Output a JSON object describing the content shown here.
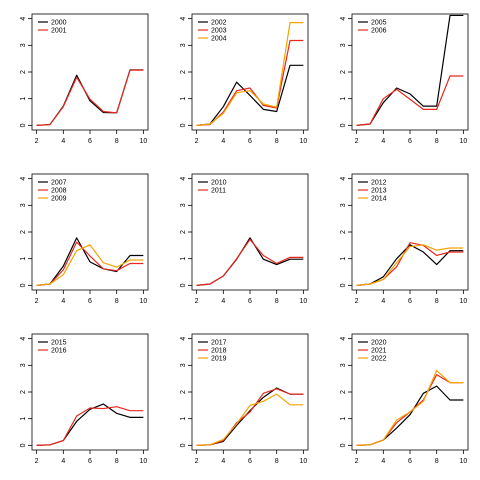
{
  "colors": {
    "black": "#000000",
    "red": "#e8281e",
    "orange": "#f5a300"
  },
  "chart_data": [
    {
      "type": "line",
      "x": [
        2,
        3,
        4,
        5,
        6,
        7,
        8,
        9,
        10
      ],
      "xlim": [
        2,
        10
      ],
      "ylim": [
        0,
        4
      ],
      "xticks": [
        2,
        4,
        6,
        8,
        10
      ],
      "yticks": [
        0,
        1,
        2,
        3,
        4
      ],
      "grid": false,
      "legend": "top-left",
      "series": [
        {
          "name": "2000",
          "color": "black",
          "values": [
            0,
            0.03,
            0.72,
            1.88,
            0.92,
            0.48,
            0.47,
            2.08,
            2.08
          ]
        },
        {
          "name": "2001",
          "color": "red",
          "values": [
            0,
            0.03,
            0.7,
            1.8,
            0.98,
            0.52,
            0.47,
            2.07,
            2.07
          ]
        }
      ]
    },
    {
      "type": "line",
      "x": [
        2,
        3,
        4,
        5,
        6,
        7,
        8,
        9,
        10
      ],
      "xlim": [
        2,
        10
      ],
      "ylim": [
        0,
        4
      ],
      "xticks": [
        2,
        4,
        6,
        8,
        10
      ],
      "yticks": [
        0,
        1,
        2,
        3,
        4
      ],
      "grid": false,
      "legend": "top-left",
      "series": [
        {
          "name": "2002",
          "color": "black",
          "values": [
            0,
            0.05,
            0.7,
            1.62,
            1.12,
            0.6,
            0.52,
            2.25,
            2.25
          ]
        },
        {
          "name": "2003",
          "color": "red",
          "values": [
            0,
            0.03,
            0.5,
            1.3,
            1.4,
            0.75,
            0.65,
            3.18,
            3.18
          ]
        },
        {
          "name": "2004",
          "color": "orange",
          "values": [
            0,
            0.05,
            0.45,
            1.22,
            1.3,
            0.8,
            0.68,
            3.85,
            3.85
          ]
        }
      ]
    },
    {
      "type": "line",
      "x": [
        2,
        3,
        4,
        5,
        6,
        7,
        8,
        9,
        10
      ],
      "xlim": [
        2,
        10
      ],
      "ylim": [
        0,
        4
      ],
      "xticks": [
        2,
        4,
        6,
        8,
        10
      ],
      "yticks": [
        0,
        1,
        2,
        3,
        4
      ],
      "grid": false,
      "legend": "top-left",
      "series": [
        {
          "name": "2005",
          "color": "black",
          "values": [
            0,
            0.05,
            0.85,
            1.4,
            1.18,
            0.72,
            0.72,
            4.12,
            4.12
          ]
        },
        {
          "name": "2006",
          "color": "red",
          "values": [
            0,
            0.05,
            1.0,
            1.35,
            0.98,
            0.6,
            0.6,
            1.85,
            1.85
          ]
        }
      ]
    },
    {
      "type": "line",
      "x": [
        2,
        3,
        4,
        5,
        6,
        7,
        8,
        9,
        10
      ],
      "xlim": [
        2,
        10
      ],
      "ylim": [
        0,
        4
      ],
      "xticks": [
        2,
        4,
        6,
        8,
        10
      ],
      "yticks": [
        0,
        1,
        2,
        3,
        4
      ],
      "grid": false,
      "legend": "top-left",
      "series": [
        {
          "name": "2007",
          "color": "black",
          "values": [
            0,
            0.05,
            0.72,
            1.78,
            0.88,
            0.62,
            0.52,
            1.12,
            1.12
          ]
        },
        {
          "name": "2008",
          "color": "red",
          "values": [
            0,
            0.05,
            0.58,
            1.62,
            1.1,
            0.62,
            0.55,
            0.82,
            0.82
          ]
        },
        {
          "name": "2009",
          "color": "orange",
          "values": [
            0,
            0.05,
            0.4,
            1.3,
            1.52,
            0.85,
            0.68,
            0.95,
            0.95
          ]
        }
      ]
    },
    {
      "type": "line",
      "x": [
        2,
        3,
        4,
        5,
        6,
        7,
        8,
        9,
        10
      ],
      "xlim": [
        2,
        10
      ],
      "ylim": [
        0,
        4
      ],
      "xticks": [
        2,
        4,
        6,
        8,
        10
      ],
      "yticks": [
        0,
        1,
        2,
        3,
        4
      ],
      "grid": false,
      "legend": "top-left",
      "series": [
        {
          "name": "2010",
          "color": "black",
          "values": [
            0,
            0.05,
            0.35,
            0.98,
            1.78,
            0.98,
            0.78,
            0.98,
            0.98
          ]
        },
        {
          "name": "2011",
          "color": "red",
          "values": [
            0,
            0.05,
            0.35,
            1.0,
            1.72,
            1.12,
            0.82,
            1.05,
            1.05
          ]
        }
      ]
    },
    {
      "type": "line",
      "x": [
        2,
        3,
        4,
        5,
        6,
        7,
        8,
        9,
        10
      ],
      "xlim": [
        2,
        10
      ],
      "ylim": [
        0,
        4
      ],
      "xticks": [
        2,
        4,
        6,
        8,
        10
      ],
      "yticks": [
        0,
        1,
        2,
        3,
        4
      ],
      "grid": false,
      "legend": "top-left",
      "series": [
        {
          "name": "2012",
          "color": "black",
          "values": [
            0,
            0.05,
            0.32,
            1.0,
            1.52,
            1.25,
            0.78,
            1.3,
            1.3
          ]
        },
        {
          "name": "2013",
          "color": "red",
          "values": [
            0,
            0.05,
            0.22,
            0.7,
            1.6,
            1.5,
            1.12,
            1.25,
            1.25
          ]
        },
        {
          "name": "2014",
          "color": "orange",
          "values": [
            0,
            0.05,
            0.22,
            0.85,
            1.45,
            1.52,
            1.32,
            1.4,
            1.4
          ]
        }
      ]
    },
    {
      "type": "line",
      "x": [
        2,
        3,
        4,
        5,
        6,
        7,
        8,
        9,
        10
      ],
      "xlim": [
        2,
        10
      ],
      "ylim": [
        0,
        4
      ],
      "xticks": [
        2,
        4,
        6,
        8,
        10
      ],
      "yticks": [
        0,
        1,
        2,
        3,
        4
      ],
      "grid": false,
      "legend": "top-left",
      "series": [
        {
          "name": "2015",
          "color": "black",
          "values": [
            0,
            0.02,
            0.18,
            0.9,
            1.35,
            1.55,
            1.2,
            1.05,
            1.05
          ]
        },
        {
          "name": "2016",
          "color": "red",
          "values": [
            0,
            0.02,
            0.18,
            1.1,
            1.4,
            1.38,
            1.45,
            1.3,
            1.3
          ]
        }
      ]
    },
    {
      "type": "line",
      "x": [
        2,
        3,
        4,
        5,
        6,
        7,
        8,
        9,
        10
      ],
      "xlim": [
        2,
        10
      ],
      "ylim": [
        0,
        4
      ],
      "xticks": [
        2,
        4,
        6,
        8,
        10
      ],
      "yticks": [
        0,
        1,
        2,
        3,
        4
      ],
      "grid": false,
      "legend": "top-left",
      "series": [
        {
          "name": "2017",
          "color": "black",
          "values": [
            0,
            0.02,
            0.15,
            0.75,
            1.3,
            1.8,
            2.15,
            1.92,
            1.92
          ]
        },
        {
          "name": "2018",
          "color": "red",
          "values": [
            0,
            0.02,
            0.18,
            0.85,
            1.25,
            1.95,
            2.12,
            1.92,
            1.92
          ]
        },
        {
          "name": "2019",
          "color": "orange",
          "values": [
            0,
            0.02,
            0.22,
            0.8,
            1.5,
            1.65,
            1.92,
            1.52,
            1.52
          ]
        }
      ]
    },
    {
      "type": "line",
      "x": [
        2,
        3,
        4,
        5,
        6,
        7,
        8,
        9,
        10
      ],
      "xlim": [
        2,
        10
      ],
      "ylim": [
        0,
        4
      ],
      "xticks": [
        2,
        4,
        6,
        8,
        10
      ],
      "yticks": [
        0,
        1,
        2,
        3,
        4
      ],
      "grid": false,
      "legend": "top-left",
      "series": [
        {
          "name": "2020",
          "color": "black",
          "values": [
            0,
            0.02,
            0.2,
            0.65,
            1.15,
            1.95,
            2.22,
            1.7,
            1.7
          ]
        },
        {
          "name": "2021",
          "color": "red",
          "values": [
            0,
            0.02,
            0.2,
            0.85,
            1.25,
            1.7,
            2.65,
            2.35,
            2.35
          ]
        },
        {
          "name": "2022",
          "color": "orange",
          "values": [
            0,
            0.02,
            0.2,
            0.95,
            1.25,
            1.65,
            2.8,
            2.35,
            2.35
          ]
        }
      ]
    }
  ]
}
